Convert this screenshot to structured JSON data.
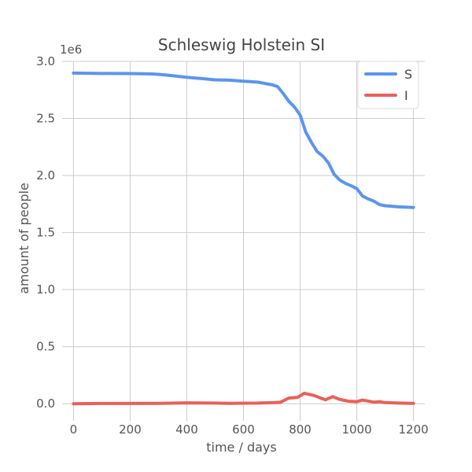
{
  "chart_data": {
    "type": "line",
    "title": "Schleswig Holstein SI",
    "xlabel": "time / days",
    "ylabel": "amount of people",
    "y_scale_label": "1e6",
    "xlim": [
      -40,
      1240
    ],
    "ylim": [
      -0.15,
      3.0
    ],
    "x_ticks": [
      0,
      200,
      400,
      600,
      800,
      1000,
      1200
    ],
    "x_tick_labels": [
      "0",
      "200",
      "400",
      "600",
      "800",
      "1000",
      "1200"
    ],
    "y_ticks": [
      0.0,
      0.5,
      1.0,
      1.5,
      2.0,
      2.5,
      3.0
    ],
    "y_tick_labels": [
      "0.0",
      "0.5",
      "1.0",
      "1.5",
      "2.0",
      "2.5",
      "3.0"
    ],
    "grid": true,
    "legend_position": "top-right",
    "series": [
      {
        "name": "S",
        "color": "#5b95ee",
        "x": [
          0,
          50,
          100,
          200,
          280,
          320,
          360,
          400,
          450,
          500,
          550,
          600,
          650,
          700,
          720,
          740,
          760,
          780,
          800,
          820,
          840,
          860,
          880,
          900,
          920,
          940,
          960,
          980,
          1000,
          1020,
          1040,
          1060,
          1080,
          1100,
          1150,
          1200
        ],
        "y": [
          2.897,
          2.896,
          2.894,
          2.893,
          2.89,
          2.882,
          2.872,
          2.86,
          2.85,
          2.838,
          2.835,
          2.826,
          2.818,
          2.795,
          2.78,
          2.72,
          2.65,
          2.6,
          2.53,
          2.38,
          2.29,
          2.21,
          2.17,
          2.11,
          2.01,
          1.96,
          1.93,
          1.91,
          1.885,
          1.82,
          1.795,
          1.775,
          1.745,
          1.735,
          1.725,
          1.72
        ]
      },
      {
        "name": "I",
        "color": "#e8615a",
        "x": [
          0,
          100,
          200,
          300,
          400,
          500,
          550,
          600,
          650,
          700,
          730,
          760,
          790,
          815,
          830,
          850,
          870,
          890,
          915,
          940,
          970,
          1000,
          1020,
          1040,
          1060,
          1080,
          1100,
          1150,
          1200
        ],
        "y": [
          0.0,
          0.002,
          0.002,
          0.003,
          0.008,
          0.006,
          0.003,
          0.005,
          0.006,
          0.009,
          0.013,
          0.05,
          0.055,
          0.092,
          0.083,
          0.072,
          0.052,
          0.035,
          0.062,
          0.038,
          0.022,
          0.018,
          0.032,
          0.024,
          0.014,
          0.018,
          0.01,
          0.006,
          0.004
        ]
      }
    ]
  }
}
